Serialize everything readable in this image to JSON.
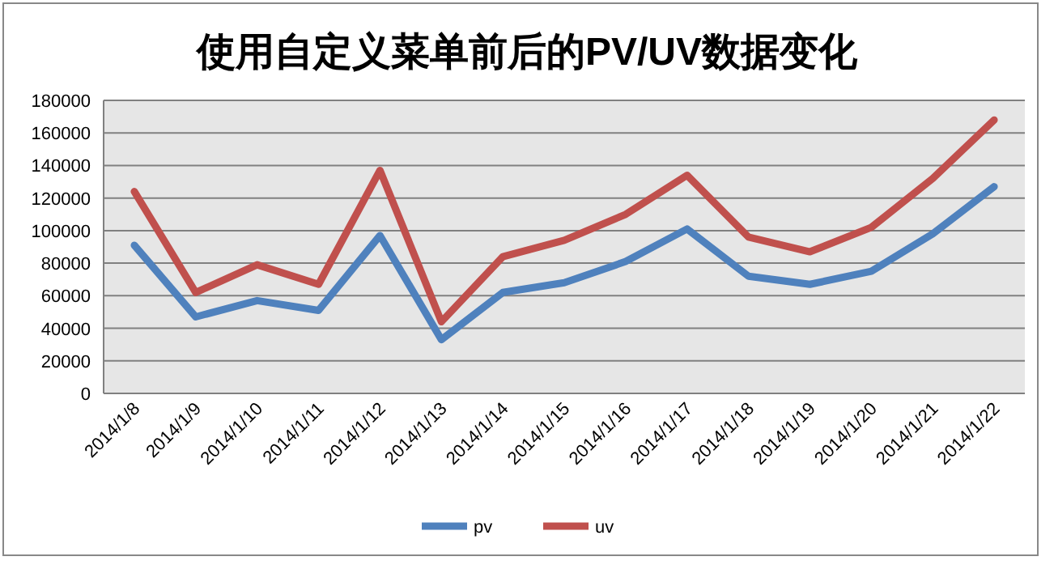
{
  "chart_data": {
    "type": "line",
    "title": "使用自定义菜单前后的PV/UV数据变化",
    "categories": [
      "2014/1/8",
      "2014/1/9",
      "2014/1/10",
      "2014/1/11",
      "2014/1/12",
      "2014/1/13",
      "2014/1/14",
      "2014/1/15",
      "2014/1/16",
      "2014/1/17",
      "2014/1/18",
      "2014/1/19",
      "2014/1/20",
      "2014/1/21",
      "2014/1/22"
    ],
    "series": [
      {
        "name": "pv",
        "color": "#4f81bd",
        "values": [
          91000,
          47000,
          57000,
          51000,
          97000,
          33000,
          62000,
          68000,
          81000,
          101000,
          72000,
          67000,
          75000,
          98000,
          127000
        ]
      },
      {
        "name": "uv",
        "color": "#c0504d",
        "values": [
          124000,
          62000,
          79000,
          67000,
          137000,
          44000,
          84000,
          94000,
          110000,
          134000,
          96000,
          87000,
          102000,
          132000,
          168000
        ]
      }
    ],
    "ylim": [
      0,
      180000
    ],
    "yticks": [
      0,
      20000,
      40000,
      60000,
      80000,
      100000,
      120000,
      140000,
      160000,
      180000
    ],
    "grid": "y",
    "legend": "bottom",
    "marker": "none",
    "line_style": "solid"
  }
}
